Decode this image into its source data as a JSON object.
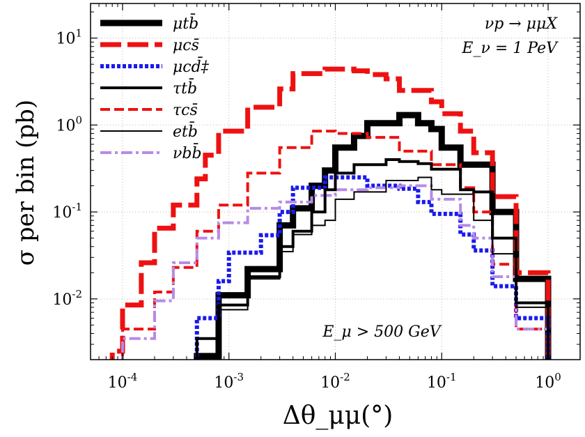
{
  "chart_data": {
    "type": "step",
    "title": "",
    "xlabel": "Δθ_μμ(°)",
    "ylabel": "σ per bin (pb)",
    "xscale": "log",
    "yscale": "log",
    "xlim": [
      5e-05,
      2.0
    ],
    "ylim": [
      0.002,
      25
    ],
    "grid": true,
    "legend_position": "top-left",
    "x_ticks": [
      {
        "value": 0.0001,
        "label": "10^-4"
      },
      {
        "value": 0.001,
        "label": "10^-3"
      },
      {
        "value": 0.01,
        "label": "10^-2"
      },
      {
        "value": 0.1,
        "label": "10^-1"
      },
      {
        "value": 1,
        "label": "10^0"
      }
    ],
    "y_ticks": [
      {
        "value": 0.01,
        "label": "10^-2"
      },
      {
        "value": 0.1,
        "label": "10^-1"
      },
      {
        "value": 1,
        "label": "10^0"
      },
      {
        "value": 10,
        "label": "10^1"
      }
    ],
    "annotations": {
      "process": "νp → μμX",
      "energy": "E_ν = 1 PeV",
      "cut": "E_μ > 500 GeV"
    },
    "series": [
      {
        "name": "μtb̄",
        "color": "#000000",
        "linewidth": 9,
        "dash": "solid",
        "edges": [
          0.0005,
          0.0006,
          0.0008,
          0.001,
          0.0015,
          0.002,
          0.003,
          0.004,
          0.006,
          0.008,
          0.01,
          0.015,
          0.02,
          0.03,
          0.04,
          0.06,
          0.08,
          0.1,
          0.15,
          0.2,
          0.3,
          0.5,
          1.0
        ],
        "values": [
          0.0022,
          0.0022,
          0.011,
          0.011,
          0.022,
          0.022,
          0.07,
          0.11,
          0.2,
          0.3,
          0.55,
          0.75,
          1.05,
          1.05,
          1.3,
          1.05,
          0.9,
          0.55,
          0.35,
          0.35,
          0.1,
          0.017
        ]
      },
      {
        "name": "μcs̄",
        "color": "#ee1111",
        "linewidth": 7,
        "dash": "long",
        "edges": [
          8e-05,
          0.0001,
          0.00015,
          0.0002,
          0.0003,
          0.0004,
          0.0005,
          0.0006,
          0.0008,
          0.001,
          0.0015,
          0.002,
          0.003,
          0.004,
          0.006,
          0.008,
          0.01,
          0.015,
          0.02,
          0.03,
          0.04,
          0.06,
          0.08,
          0.1,
          0.15,
          0.2,
          0.3,
          0.5,
          1.0
        ],
        "values": [
          0.0025,
          0.0085,
          0.026,
          0.065,
          0.12,
          0.12,
          0.24,
          0.45,
          0.85,
          0.85,
          1.6,
          1.6,
          2.6,
          3.9,
          3.9,
          4.4,
          4.4,
          4.2,
          3.8,
          3.4,
          2.5,
          2.5,
          1.85,
          1.35,
          0.85,
          0.48,
          0.15,
          0.02
        ]
      },
      {
        "name": "μcd̄‡",
        "color": "#1a1aee",
        "linewidth": 6,
        "dash": "dotted",
        "edges": [
          0.0005,
          0.0006,
          0.0008,
          0.001,
          0.0015,
          0.002,
          0.003,
          0.004,
          0.006,
          0.008,
          0.01,
          0.015,
          0.02,
          0.03,
          0.04,
          0.06,
          0.08,
          0.1,
          0.15,
          0.2,
          0.3,
          0.5,
          1.0
        ],
        "values": [
          0.006,
          0.006,
          0.016,
          0.034,
          0.034,
          0.054,
          0.1,
          0.19,
          0.19,
          0.25,
          0.25,
          0.25,
          0.2,
          0.2,
          0.185,
          0.13,
          0.095,
          0.095,
          0.055,
          0.036,
          0.014,
          0.006
        ]
      },
      {
        "name": "τtb̄",
        "color": "#000000",
        "linewidth": 4,
        "dash": "solid",
        "edges": [
          0.0005,
          0.0006,
          0.0008,
          0.001,
          0.0015,
          0.002,
          0.003,
          0.004,
          0.006,
          0.008,
          0.01,
          0.015,
          0.02,
          0.03,
          0.04,
          0.06,
          0.08,
          0.1,
          0.15,
          0.2,
          0.3,
          0.5,
          1.0
        ],
        "values": [
          0.0035,
          0.0035,
          0.0085,
          0.0085,
          0.018,
          0.018,
          0.04,
          0.06,
          0.1,
          0.18,
          0.28,
          0.35,
          0.35,
          0.4,
          0.38,
          0.36,
          0.31,
          0.31,
          0.18,
          0.17,
          0.05,
          0.009
        ]
      },
      {
        "name": "τcs̄",
        "color": "#ee1111",
        "linewidth": 4,
        "dash": "short",
        "edges": [
          0.0001,
          0.00015,
          0.0002,
          0.0003,
          0.0004,
          0.0005,
          0.0006,
          0.0008,
          0.001,
          0.0015,
          0.002,
          0.003,
          0.004,
          0.006,
          0.008,
          0.01,
          0.015,
          0.02,
          0.03,
          0.04,
          0.06,
          0.08,
          0.1,
          0.15,
          0.2,
          0.3,
          0.5,
          1.0
        ],
        "values": [
          0.0045,
          0.0045,
          0.012,
          0.023,
          0.023,
          0.06,
          0.06,
          0.12,
          0.12,
          0.28,
          0.28,
          0.55,
          0.55,
          0.85,
          0.85,
          0.8,
          0.8,
          0.72,
          0.72,
          0.5,
          0.5,
          0.35,
          0.35,
          0.19,
          0.1,
          0.025,
          0.0045
        ]
      },
      {
        "name": "etb̄",
        "color": "#000000",
        "linewidth": 2,
        "dash": "solid",
        "edges": [
          0.0005,
          0.0006,
          0.0008,
          0.001,
          0.0015,
          0.002,
          0.003,
          0.004,
          0.006,
          0.008,
          0.01,
          0.015,
          0.02,
          0.03,
          0.04,
          0.06,
          0.08,
          0.1,
          0.15,
          0.2,
          0.3,
          0.5,
          1.0
        ],
        "values": [
          0.0035,
          0.0035,
          0.0075,
          0.0075,
          0.017,
          0.017,
          0.035,
          0.055,
          0.07,
          0.08,
          0.14,
          0.17,
          0.17,
          0.23,
          0.23,
          0.25,
          0.18,
          0.16,
          0.16,
          0.08,
          0.033,
          0.008
        ]
      },
      {
        "name": "νbb̄",
        "color": "#b78be6",
        "linewidth": 4,
        "dash": "dashdot",
        "edges": [
          0.0001,
          0.00015,
          0.0002,
          0.0003,
          0.0004,
          0.0005,
          0.0006,
          0.0008,
          0.001,
          0.0015,
          0.002,
          0.003,
          0.004,
          0.006,
          0.008,
          0.01,
          0.015,
          0.02,
          0.03,
          0.04,
          0.06,
          0.08,
          0.1,
          0.15,
          0.2,
          0.3,
          0.5,
          1.0
        ],
        "values": [
          0.0035,
          0.0035,
          0.0095,
          0.026,
          0.026,
          0.05,
          0.05,
          0.075,
          0.075,
          0.11,
          0.11,
          0.13,
          0.13,
          0.155,
          0.155,
          0.18,
          0.18,
          0.19,
          0.19,
          0.2,
          0.2,
          0.14,
          0.14,
          0.07,
          0.05,
          0.018,
          0.0045
        ]
      }
    ]
  }
}
